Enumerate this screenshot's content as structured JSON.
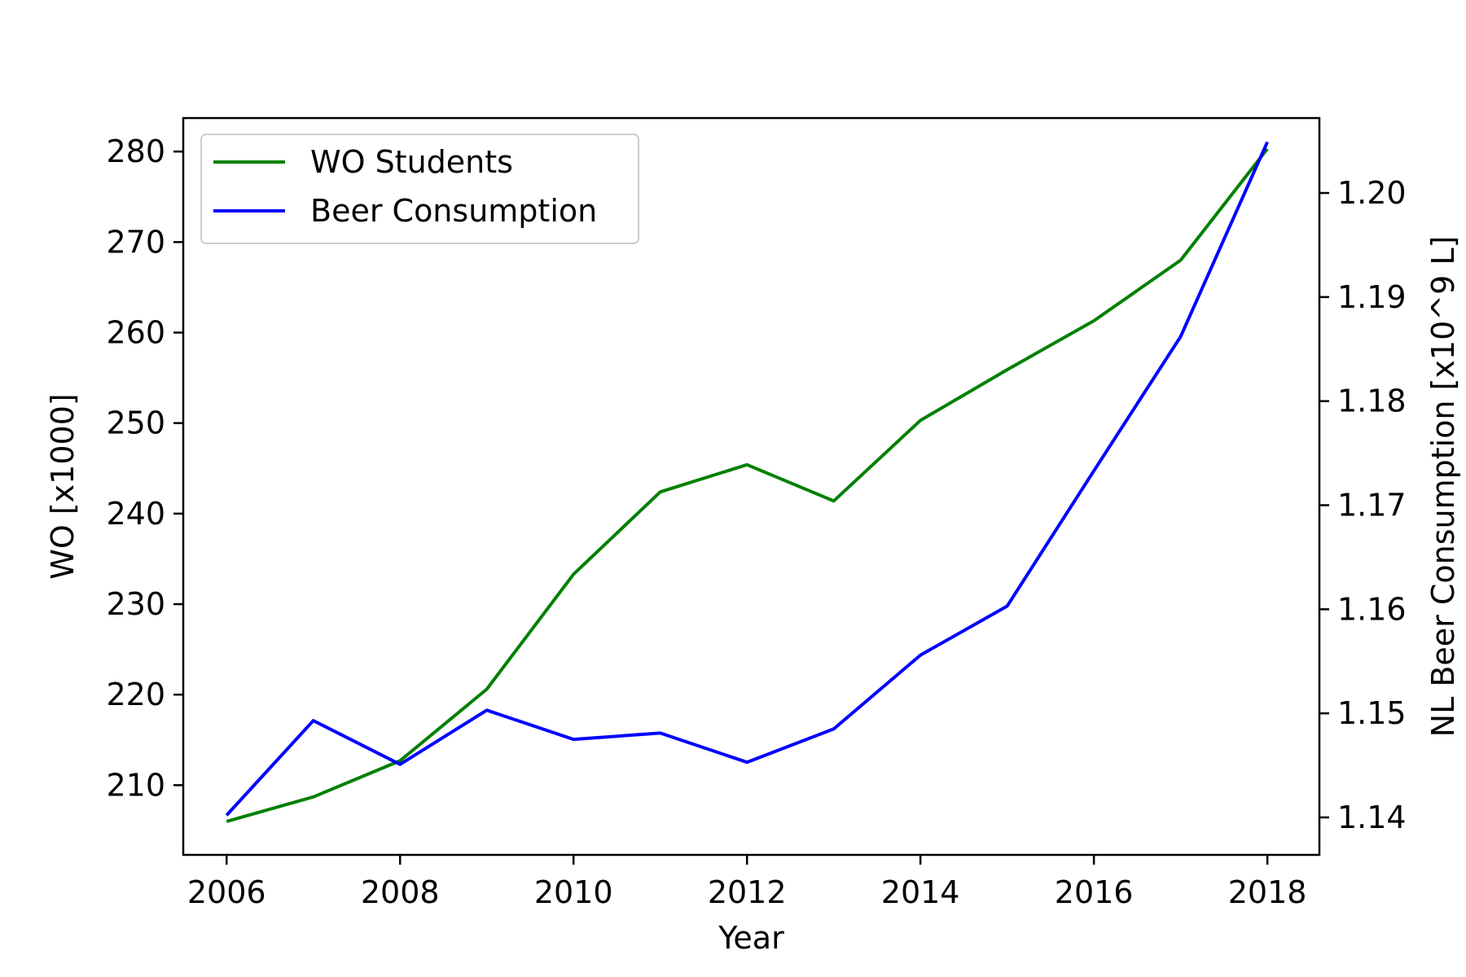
{
  "chart_data": {
    "type": "line",
    "x": [
      2006,
      2007,
      2008,
      2009,
      2010,
      2011,
      2012,
      2013,
      2014,
      2015,
      2016,
      2017,
      2018
    ],
    "x_ticks": [
      "2006",
      "2008",
      "2010",
      "2012",
      "2014",
      "2016",
      "2018"
    ],
    "x_tick_values": [
      2006,
      2008,
      2010,
      2012,
      2014,
      2016,
      2018
    ],
    "xlim": [
      2005.5,
      2018.6
    ],
    "xlabel": "Year",
    "ylabel_left": "WO [x1000]",
    "ylabel_right": "NL Beer Consumption [x10^9 L]",
    "ylim_left": [
      202.3,
      283.7
    ],
    "ylim_right": [
      1.1364,
      1.2072
    ],
    "yticks_left": [
      "210",
      "220",
      "230",
      "240",
      "250",
      "260",
      "270",
      "280"
    ],
    "yticks_left_values": [
      210,
      220,
      230,
      240,
      250,
      260,
      270,
      280
    ],
    "yticks_right": [
      "1.14",
      "1.15",
      "1.16",
      "1.17",
      "1.18",
      "1.19",
      "1.20"
    ],
    "yticks_right_values": [
      1.14,
      1.15,
      1.16,
      1.17,
      1.18,
      1.19,
      1.2
    ],
    "grid": false,
    "legend_position": "top-left",
    "series": [
      {
        "name": "WO Students",
        "axis": "left",
        "color": "#008000",
        "values": [
          206.0,
          208.7,
          212.7,
          220.6,
          233.3,
          242.4,
          245.4,
          241.4,
          250.3,
          255.9,
          261.3,
          268.0,
          280.3
        ]
      },
      {
        "name": "Beer Consumption",
        "axis": "right",
        "color": "#0000ff",
        "values": [
          1.1402,
          1.1493,
          1.1451,
          1.1503,
          1.1475,
          1.1481,
          1.1453,
          1.1485,
          1.1556,
          1.1603,
          1.1733,
          1.1862,
          1.2049
        ]
      }
    ]
  }
}
